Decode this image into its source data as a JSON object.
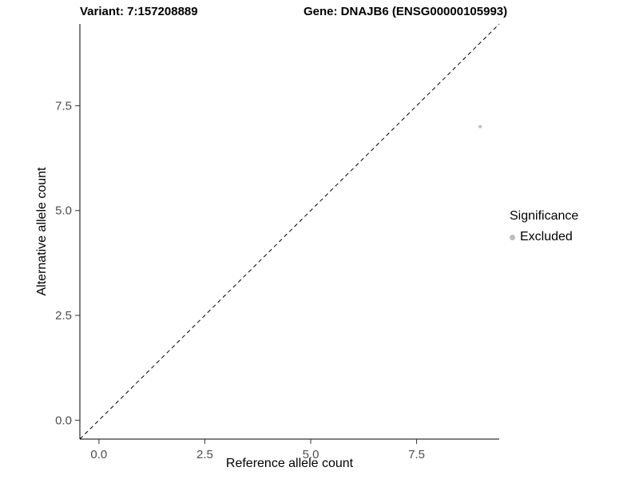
{
  "titles": {
    "variant": "Variant: 7:157208889",
    "gene": "Gene: DNAJB6 (ENSG00000105993)"
  },
  "chart_data": {
    "type": "scatter",
    "title_left": "Variant: 7:157208889",
    "title_right": "Gene: DNAJB6 (ENSG00000105993)",
    "xlabel": "Reference allele count",
    "ylabel": "Alternative allele count",
    "xlim": [
      -0.45,
      9.45
    ],
    "ylim": [
      -0.45,
      9.45
    ],
    "xticks": [
      0.0,
      2.5,
      5.0,
      7.5
    ],
    "yticks": [
      0.0,
      2.5,
      5.0,
      7.5
    ],
    "xtick_labels": [
      "0.0",
      "2.5",
      "5.0",
      "7.5"
    ],
    "ytick_labels": [
      "0.0",
      "2.5",
      "5.0",
      "7.5"
    ],
    "grid": false,
    "series": [
      {
        "name": "Excluded",
        "color": "#bdbdbd",
        "point_radius": 2,
        "points": [
          {
            "x": 9,
            "y": 7
          }
        ]
      }
    ],
    "reference_line": {
      "type": "identity",
      "slope": 1,
      "intercept": 0,
      "style": "dashed",
      "color": "#000000"
    },
    "legend": {
      "title": "Significance",
      "position": "right",
      "entries": [
        {
          "label": "Excluded",
          "color": "#bdbdbd"
        }
      ]
    }
  }
}
